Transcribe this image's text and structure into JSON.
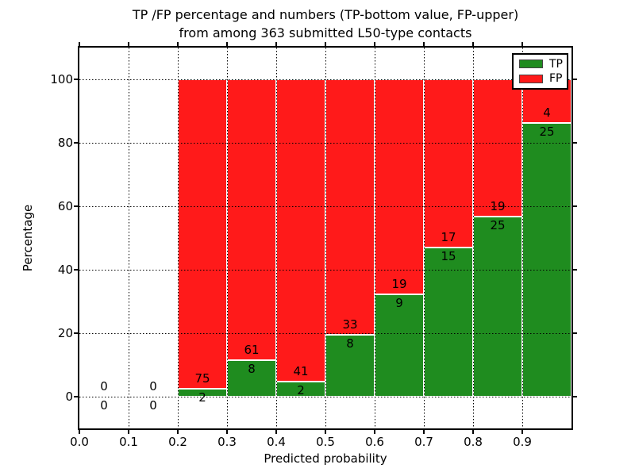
{
  "figure": {
    "title_line1": "TP /FP percentage and numbers (TP-bottom value, FP-upper)",
    "title_line2": "from among 363 submitted L50-type contacts",
    "background": "#ffffff"
  },
  "axes": {
    "xlabel": "Predicted probability",
    "ylabel": "Percentage",
    "x_tick_labels": [
      "0.0",
      "0.1",
      "0.2",
      "0.3",
      "0.4",
      "0.5",
      "0.6",
      "0.7",
      "0.8",
      "0.9"
    ],
    "x_tick_values": [
      0.0,
      0.1,
      0.2,
      0.3,
      0.4,
      0.5,
      0.6,
      0.7,
      0.8,
      0.9
    ],
    "y_tick_labels": [
      "0",
      "20",
      "40",
      "60",
      "80",
      "100"
    ],
    "y_tick_values": [
      0,
      20,
      40,
      60,
      80,
      100
    ],
    "xlim": [
      0.0,
      1.0
    ],
    "ylim": [
      -10,
      110
    ],
    "grid_style": "dotted-black-both-axes"
  },
  "legend": {
    "position": "upper-right",
    "items": [
      {
        "label": "TP",
        "color": "#1f8c1f"
      },
      {
        "label": "FP",
        "color": "#ff1a1a"
      }
    ]
  },
  "colors": {
    "tp_green": "#1f8c1f",
    "fp_red": "#ff1a1a",
    "bar_edge": "#ffffff",
    "grid": "#000000",
    "text": "#000000"
  },
  "chart_data": {
    "type": "bar",
    "stacked": true,
    "orientation": "vertical",
    "total_contacts": 363,
    "xlabel": "Predicted probability",
    "ylabel": "Percentage",
    "bin_width": 0.1,
    "bins": [
      {
        "x_start": 0.0,
        "x_end": 0.1,
        "tp_count": 0,
        "fp_count": 0,
        "tp_pct": 0,
        "fp_pct": 0
      },
      {
        "x_start": 0.1,
        "x_end": 0.2,
        "tp_count": 0,
        "fp_count": 0,
        "tp_pct": 0,
        "fp_pct": 0
      },
      {
        "x_start": 0.2,
        "x_end": 0.3,
        "tp_count": 2,
        "fp_count": 75,
        "tp_pct": 2.6,
        "fp_pct": 97.4
      },
      {
        "x_start": 0.3,
        "x_end": 0.4,
        "tp_count": 8,
        "fp_count": 61,
        "tp_pct": 11.59,
        "fp_pct": 88.41
      },
      {
        "x_start": 0.4,
        "x_end": 0.5,
        "tp_count": 2,
        "fp_count": 41,
        "tp_pct": 4.65,
        "fp_pct": 95.35
      },
      {
        "x_start": 0.5,
        "x_end": 0.6,
        "tp_count": 8,
        "fp_count": 33,
        "tp_pct": 19.51,
        "fp_pct": 80.49
      },
      {
        "x_start": 0.6,
        "x_end": 0.7,
        "tp_count": 9,
        "fp_count": 19,
        "tp_pct": 32.14,
        "fp_pct": 67.86
      },
      {
        "x_start": 0.7,
        "x_end": 0.8,
        "tp_count": 15,
        "fp_count": 17,
        "tp_pct": 46.88,
        "fp_pct": 53.12
      },
      {
        "x_start": 0.8,
        "x_end": 0.9,
        "tp_count": 25,
        "fp_count": 19,
        "tp_pct": 56.82,
        "fp_pct": 43.18
      },
      {
        "x_start": 0.9,
        "x_end": 1.0,
        "tp_count": 25,
        "fp_count": 4,
        "tp_pct": 86.21,
        "fp_pct": 13.79
      }
    ]
  }
}
